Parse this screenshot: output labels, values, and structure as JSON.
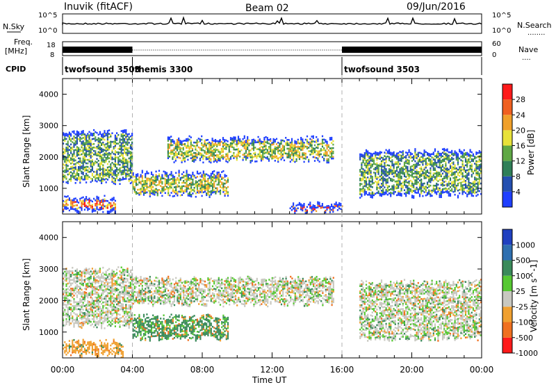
{
  "header": {
    "station": "Inuvik (fitACF)",
    "beam": "Beam 02",
    "date": "09/Jun/2016"
  },
  "panels": {
    "nsky": {
      "left_label": "N.Sky",
      "left_ticks": [
        "10^5",
        "10^0"
      ],
      "right_ticks": [
        "10^5",
        "10^0"
      ],
      "right_label": "N.Search",
      "right_dots": "........"
    },
    "freq": {
      "left_label": "Freq.",
      "left_unit": "[MHz]",
      "left_ticks": [
        "18",
        "8"
      ],
      "right_ticks": [
        "60",
        "0"
      ],
      "right_label": "Nave",
      "right_dots": "...."
    },
    "cpid": {
      "label": "CPID",
      "segments": [
        {
          "name": "twofsound 3503",
          "start_h": 0,
          "end_h": 4.0
        },
        {
          "name": "themis 3300",
          "start_h": 4.0,
          "end_h": 16.0
        },
        {
          "name": "twofsound 3503",
          "start_h": 16.0,
          "end_h": 24.0
        }
      ]
    }
  },
  "chart_data": [
    {
      "type": "heatmap",
      "title": "",
      "xlabel": "Time UT",
      "ylabel": "Slant Range [km]",
      "xlim": [
        0,
        24
      ],
      "ylim": [
        180,
        4500
      ],
      "xticks": [
        "00:00",
        "04:00",
        "08:00",
        "12:00",
        "16:00",
        "20:00",
        "00:00"
      ],
      "yticks": [
        1000,
        2000,
        3000,
        4000
      ],
      "colorbar": {
        "label": "Power [dB]",
        "ticks": [
          "4",
          "8",
          "12",
          "16",
          "20",
          "24",
          "28"
        ],
        "colors": [
          "#1f3fff",
          "#244fb0",
          "#2f7f58",
          "#5fa845",
          "#e8e23a",
          "#f0a02a",
          "#f06020",
          "#ff1a1a"
        ]
      },
      "echo_bands": [
        {
          "t0": 0.0,
          "t1": 4.0,
          "r0": 1200,
          "r1": 2800,
          "value_db": 12
        },
        {
          "t0": 0.0,
          "t1": 3.0,
          "r0": 300,
          "r1": 700,
          "value_db": 24
        },
        {
          "t0": 4.0,
          "t1": 9.5,
          "r0": 800,
          "r1": 1500,
          "value_db": 14
        },
        {
          "t0": 6.0,
          "t1": 15.5,
          "r0": 1900,
          "r1": 2600,
          "value_db": 15
        },
        {
          "t0": 13.0,
          "t1": 16.0,
          "r0": 300,
          "r1": 500,
          "value_db": 26
        },
        {
          "t0": 17.0,
          "t1": 24.0,
          "r0": 800,
          "r1": 2200,
          "value_db": 12
        }
      ]
    },
    {
      "type": "heatmap",
      "title": "",
      "xlabel": "Time UT",
      "ylabel": "Slant Range [km]",
      "xlim": [
        0,
        24
      ],
      "ylim": [
        180,
        4500
      ],
      "xticks": [
        "00:00",
        "04:00",
        "08:00",
        "12:00",
        "16:00",
        "20:00",
        "00:00"
      ],
      "yticks": [
        1000,
        2000,
        3000,
        4000
      ],
      "colorbar": {
        "label": "Velocity [m s^-1]",
        "ticks": [
          "1000",
          "500",
          "100",
          "25",
          "-25",
          "-100",
          "-500",
          "-1000"
        ],
        "colors": [
          "#2040c0",
          "#2f6fb0",
          "#3a8a5a",
          "#56c832",
          "#c8c8c0",
          "#f0a030",
          "#f07020",
          "#ff1a1a"
        ]
      },
      "echo_bands": [
        {
          "t0": 0.0,
          "t1": 4.0,
          "r0": 1200,
          "r1": 3000,
          "velocity": 0
        },
        {
          "t0": 0.0,
          "t1": 3.5,
          "r0": 300,
          "r1": 700,
          "velocity": -300
        },
        {
          "t0": 4.0,
          "t1": 9.5,
          "r0": 800,
          "r1": 1500,
          "velocity": 150
        },
        {
          "t0": 4.0,
          "t1": 15.5,
          "r0": 1900,
          "r1": 2700,
          "velocity": 0
        },
        {
          "t0": 17.0,
          "t1": 24.0,
          "r0": 800,
          "r1": 2600,
          "velocity": 0
        }
      ]
    }
  ],
  "colors": {
    "axis": "#000000",
    "dashed_marker": "#b0b0b0",
    "background": "#ffffff"
  }
}
